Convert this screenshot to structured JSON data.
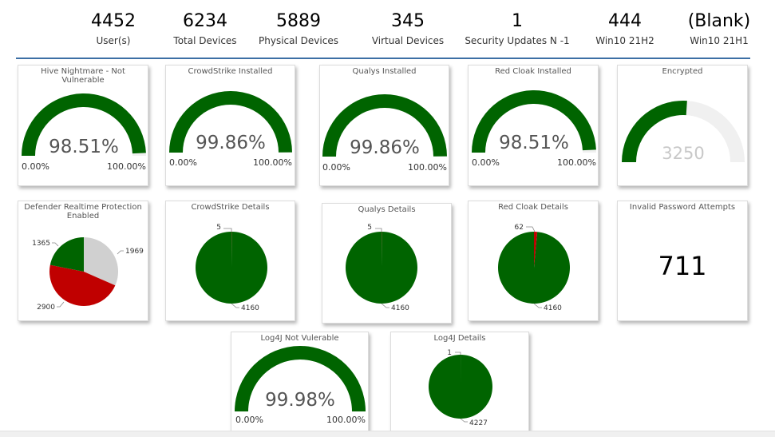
{
  "kpis": [
    {
      "value": "4452",
      "label": "User(s)"
    },
    {
      "value": "6234",
      "label": "Total Devices"
    },
    {
      "value": "5889",
      "label": "Physical Devices"
    },
    {
      "value": "345",
      "label": "Virtual Devices"
    },
    {
      "value": "1",
      "label": "Security Updates N -1"
    },
    {
      "value": "444",
      "label": "Win10 21H2"
    },
    {
      "value": "(Blank)",
      "label": "Win10 21H1"
    }
  ],
  "colors": {
    "green": "#006400",
    "red": "#c00000",
    "grey": "#d0d0d0",
    "track": "#f0f0f0",
    "rule": "#3d6fa5"
  },
  "gauges": {
    "hive": {
      "title": "Hive Nightmare - Not Vulnerable",
      "value_label": "98.51%",
      "min": "0.00%",
      "max": "100.00%",
      "fraction": 0.9851
    },
    "crowdstrike": {
      "title": "CrowdStrike Installed",
      "value_label": "99.86%",
      "min": "0.00%",
      "max": "100.00%",
      "fraction": 0.9986
    },
    "qualys": {
      "title": "Qualys Installed",
      "value_label": "99.86%",
      "min": "0.00%",
      "max": "100.00%",
      "fraction": 0.9986
    },
    "redcloak": {
      "title": "Red Cloak Installed",
      "value_label": "98.51%",
      "min": "0.00%",
      "max": "100.00%",
      "fraction": 0.9851
    },
    "encrypted": {
      "title": "Encrypted",
      "value_label": "3250",
      "fraction": 0.52
    },
    "log4j": {
      "title": "Log4J Not Vulerable",
      "value_label": "99.98%",
      "min": "0.00%",
      "max": "100.00%",
      "fraction": 0.9998
    }
  },
  "pies": {
    "defender": {
      "title": "Defender Realtime Protection Enabled",
      "labels": [
        "1969",
        "2900",
        "1365"
      ]
    },
    "crowdstrike": {
      "title": "CrowdStrike Details",
      "labels": [
        "5",
        "4160"
      ]
    },
    "qualys": {
      "title": "Qualys Details",
      "labels": [
        "5",
        "4160"
      ]
    },
    "redcloak": {
      "title": "Red Cloak Details",
      "labels": [
        "62",
        "4160"
      ]
    },
    "log4j": {
      "title": "Log4J Details",
      "labels": [
        "1",
        "4227"
      ]
    }
  },
  "chart_data": [
    {
      "type": "pie",
      "title": "Defender Realtime Protection Enabled",
      "values": [
        1969,
        2900,
        1365
      ],
      "colors": [
        "#d0d0d0",
        "#c00000",
        "#006400"
      ]
    },
    {
      "type": "pie",
      "title": "CrowdStrike Details",
      "values": [
        5,
        4160
      ],
      "colors": [
        "#c00000",
        "#006400"
      ]
    },
    {
      "type": "pie",
      "title": "Qualys Details",
      "values": [
        5,
        4160
      ],
      "colors": [
        "#c00000",
        "#006400"
      ]
    },
    {
      "type": "pie",
      "title": "Red Cloak Details",
      "values": [
        62,
        4160
      ],
      "colors": [
        "#c00000",
        "#006400"
      ]
    },
    {
      "type": "pie",
      "title": "Log4J Details",
      "values": [
        1,
        4227
      ],
      "colors": [
        "#c00000",
        "#006400"
      ]
    }
  ],
  "invalid_password": {
    "title": "Invalid Password Attempts",
    "value": "711"
  }
}
